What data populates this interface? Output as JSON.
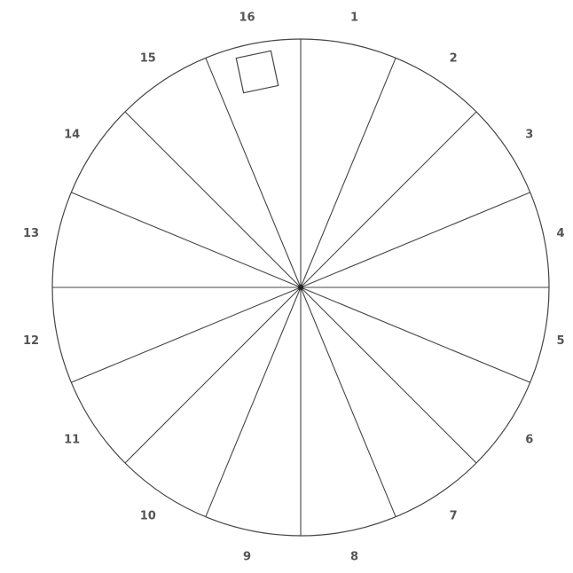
{
  "labels": [
    "1",
    "2",
    "3",
    "4",
    "5",
    "6",
    "7",
    "8",
    "9",
    "10",
    "11",
    "12",
    "13",
    "14",
    "15",
    "16"
  ]
}
